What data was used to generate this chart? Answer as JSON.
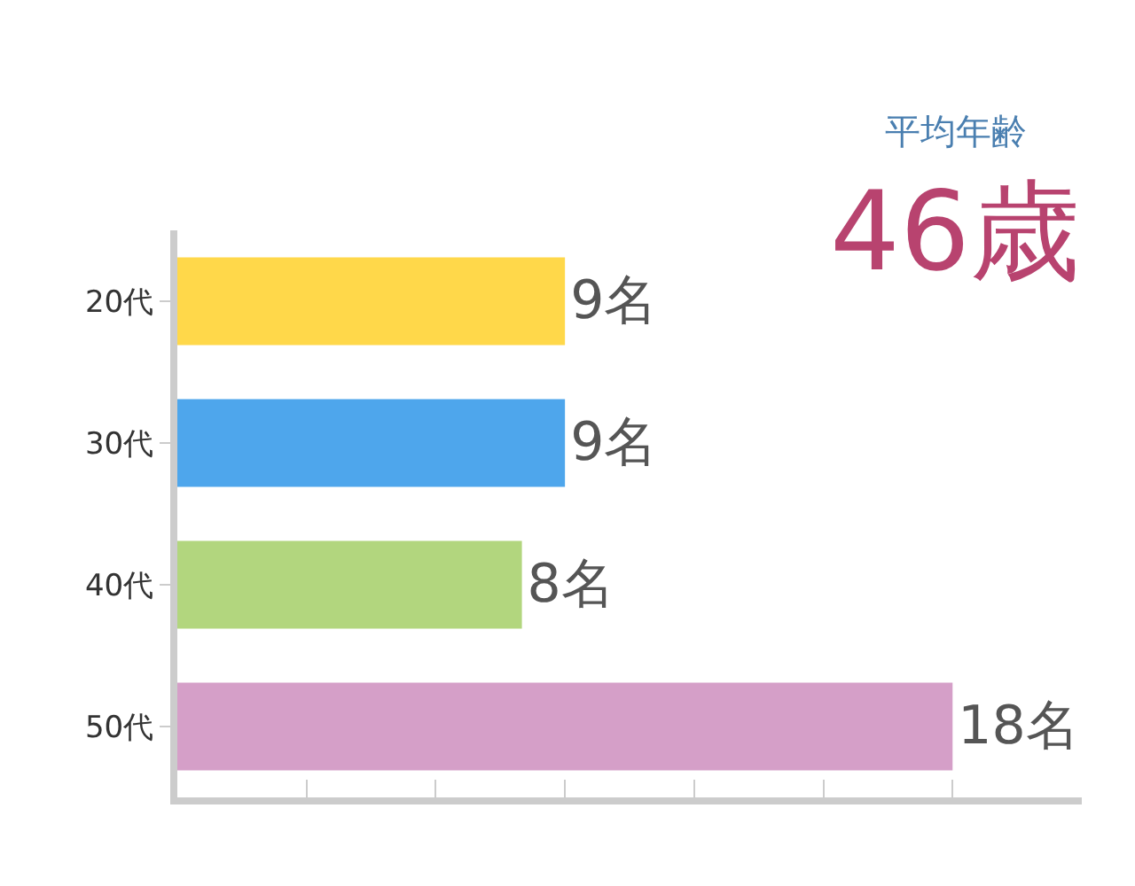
{
  "chart_data": {
    "type": "bar",
    "orientation": "horizontal",
    "categories": [
      "20代",
      "30代",
      "40代",
      "50代"
    ],
    "values": [
      9,
      9,
      8,
      18
    ],
    "colors": [
      "#ffd84a",
      "#4ea6ec",
      "#b2d67e",
      "#d59fc8"
    ],
    "value_labels": [
      "9名",
      "9名",
      "8名",
      "18名"
    ],
    "xlim": [
      0,
      21
    ],
    "xticks": [
      {
        "value": 3,
        "label": null
      },
      {
        "value": 6,
        "label": null
      },
      {
        "value": 9,
        "label": null
      },
      {
        "value": 12,
        "label": null
      },
      {
        "value": 15,
        "label": null
      },
      {
        "value": 18,
        "label": null
      }
    ],
    "tick_labels": "y",
    "grid": false,
    "legend": false,
    "annotations": [
      "平均年齢",
      "46歳"
    ]
  }
}
